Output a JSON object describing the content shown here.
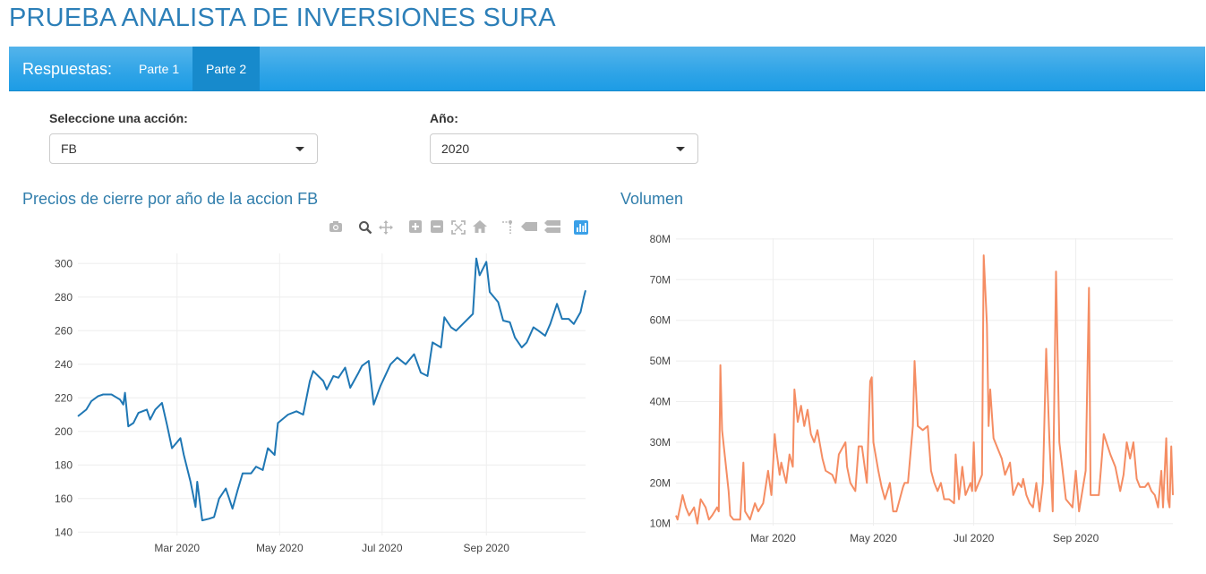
{
  "title": "PRUEBA ANALISTA DE INVERSIONES SURA",
  "nav": {
    "brand": "Respuestas:",
    "tabs": [
      {
        "label": "Parte 1",
        "active": false
      },
      {
        "label": "Parte 2",
        "active": true
      }
    ]
  },
  "controls": {
    "accion": {
      "label": "Seleccione una acción:",
      "value": "FB"
    },
    "anio": {
      "label": "Año:",
      "value": "2020"
    }
  },
  "colors": {
    "accent": "#2fa4e7",
    "price_line": "#1f77b4",
    "volume_line": "#f58d63"
  },
  "modebar_icons": [
    "camera-icon",
    "zoom-icon",
    "pan-icon",
    "zoom-in-icon",
    "zoom-out-icon",
    "autoscale-icon",
    "home-icon",
    "spike-lines-icon",
    "hover-closest-icon",
    "hover-compare-icon",
    "plotly-logo-icon"
  ],
  "chart_data": [
    {
      "type": "line",
      "title": "Precios de cierre por año de la accion FB",
      "xlabel": "",
      "ylabel": "",
      "x_ticks": [
        "Mar 2020",
        "May 2020",
        "Jul 2020",
        "Sep 2020"
      ],
      "x_tick_dates": [
        "2020-03-01",
        "2020-05-01",
        "2020-07-01",
        "2020-09-01"
      ],
      "x_range": [
        "2020-01-02",
        "2020-10-30"
      ],
      "y_ticks": [
        140,
        160,
        180,
        200,
        220,
        240,
        260,
        280,
        300
      ],
      "ylim": [
        138,
        306
      ],
      "grid": true,
      "series": [
        {
          "values": [
            [
              "2020-01-02",
              209
            ],
            [
              "2020-01-07",
              213
            ],
            [
              "2020-01-10",
              218
            ],
            [
              "2020-01-14",
              221
            ],
            [
              "2020-01-17",
              222
            ],
            [
              "2020-01-22",
              222
            ],
            [
              "2020-01-27",
              219
            ],
            [
              "2020-01-29",
              216
            ],
            [
              "2020-01-30",
              223
            ],
            [
              "2020-02-01",
              203
            ],
            [
              "2020-02-04",
              205
            ],
            [
              "2020-02-07",
              211
            ],
            [
              "2020-02-12",
              213
            ],
            [
              "2020-02-14",
              207
            ],
            [
              "2020-02-17",
              213
            ],
            [
              "2020-02-21",
              217
            ],
            [
              "2020-02-24",
              204
            ],
            [
              "2020-02-27",
              190
            ],
            [
              "2020-03-03",
              196
            ],
            [
              "2020-03-05",
              186
            ],
            [
              "2020-03-09",
              170
            ],
            [
              "2020-03-12",
              155
            ],
            [
              "2020-03-13",
              170
            ],
            [
              "2020-03-16",
              147
            ],
            [
              "2020-03-20",
              148
            ],
            [
              "2020-03-23",
              149
            ],
            [
              "2020-03-26",
              160
            ],
            [
              "2020-03-30",
              166
            ],
            [
              "2020-04-03",
              154
            ],
            [
              "2020-04-06",
              165
            ],
            [
              "2020-04-09",
              175
            ],
            [
              "2020-04-14",
              175
            ],
            [
              "2020-04-17",
              179
            ],
            [
              "2020-04-21",
              177
            ],
            [
              "2020-04-24",
              190
            ],
            [
              "2020-04-28",
              186
            ],
            [
              "2020-04-30",
              205
            ],
            [
              "2020-05-06",
              210
            ],
            [
              "2020-05-11",
              212
            ],
            [
              "2020-05-15",
              210
            ],
            [
              "2020-05-19",
              230
            ],
            [
              "2020-05-21",
              236
            ],
            [
              "2020-05-27",
              230
            ],
            [
              "2020-05-29",
              225
            ],
            [
              "2020-06-02",
              233
            ],
            [
              "2020-06-05",
              232
            ],
            [
              "2020-06-09",
              238
            ],
            [
              "2020-06-12",
              226
            ],
            [
              "2020-06-17",
              235
            ],
            [
              "2020-06-19",
              239
            ],
            [
              "2020-06-23",
              242
            ],
            [
              "2020-06-26",
              216
            ],
            [
              "2020-06-30",
              227
            ],
            [
              "2020-07-06",
              240
            ],
            [
              "2020-07-10",
              244
            ],
            [
              "2020-07-15",
              240
            ],
            [
              "2020-07-20",
              246
            ],
            [
              "2020-07-24",
              235
            ],
            [
              "2020-07-28",
              233
            ],
            [
              "2020-07-31",
              253
            ],
            [
              "2020-08-05",
              250
            ],
            [
              "2020-08-07",
              268
            ],
            [
              "2020-08-11",
              262
            ],
            [
              "2020-08-14",
              260
            ],
            [
              "2020-08-19",
              265
            ],
            [
              "2020-08-24",
              270
            ],
            [
              "2020-08-26",
              303
            ],
            [
              "2020-08-28",
              293
            ],
            [
              "2020-09-01",
              301
            ],
            [
              "2020-09-03",
              283
            ],
            [
              "2020-09-08",
              277
            ],
            [
              "2020-09-11",
              266
            ],
            [
              "2020-09-15",
              265
            ],
            [
              "2020-09-18",
              256
            ],
            [
              "2020-09-22",
              250
            ],
            [
              "2020-09-25",
              253
            ],
            [
              "2020-09-29",
              262
            ],
            [
              "2020-10-02",
              260
            ],
            [
              "2020-10-06",
              257
            ],
            [
              "2020-10-09",
              264
            ],
            [
              "2020-10-13",
              276
            ],
            [
              "2020-10-16",
              267
            ],
            [
              "2020-10-20",
              267
            ],
            [
              "2020-10-23",
              264
            ],
            [
              "2020-10-27",
              271
            ],
            [
              "2020-10-29",
              280
            ],
            [
              "2020-10-30",
              284
            ]
          ]
        }
      ]
    },
    {
      "type": "line",
      "title": "Volumen",
      "xlabel": "",
      "ylabel": "",
      "x_ticks": [
        "Mar 2020",
        "May 2020",
        "Jul 2020",
        "Sep 2020"
      ],
      "x_tick_dates": [
        "2020-03-01",
        "2020-05-01",
        "2020-07-01",
        "2020-09-01"
      ],
      "x_range": [
        "2020-01-02",
        "2020-10-30"
      ],
      "y_ticks": [
        10000000,
        20000000,
        30000000,
        40000000,
        50000000,
        60000000,
        70000000,
        80000000
      ],
      "y_tick_labels": [
        "10M",
        "20M",
        "30M",
        "40M",
        "50M",
        "60M",
        "70M",
        "80M"
      ],
      "ylim": [
        9500000,
        80200000
      ],
      "grid": true,
      "series": [
        {
          "values": [
            [
              "2020-01-02",
              12
            ],
            [
              "2020-01-03",
              11
            ],
            [
              "2020-01-06",
              17
            ],
            [
              "2020-01-08",
              14
            ],
            [
              "2020-01-10",
              12
            ],
            [
              "2020-01-13",
              14
            ],
            [
              "2020-01-15",
              10
            ],
            [
              "2020-01-17",
              16
            ],
            [
              "2020-01-20",
              14
            ],
            [
              "2020-01-22",
              11
            ],
            [
              "2020-01-24",
              12
            ],
            [
              "2020-01-27",
              14
            ],
            [
              "2020-01-28",
              13
            ],
            [
              "2020-01-29",
              49
            ],
            [
              "2020-01-30",
              33
            ],
            [
              "2020-02-03",
              18
            ],
            [
              "2020-02-04",
              12
            ],
            [
              "2020-02-06",
              11
            ],
            [
              "2020-02-10",
              11
            ],
            [
              "2020-02-12",
              25
            ],
            [
              "2020-02-13",
              13
            ],
            [
              "2020-02-16",
              11
            ],
            [
              "2020-02-19",
              15
            ],
            [
              "2020-02-21",
              13
            ],
            [
              "2020-02-24",
              15
            ],
            [
              "2020-02-27",
              23
            ],
            [
              "2020-02-29",
              17
            ],
            [
              "2020-03-02",
              32
            ],
            [
              "2020-03-03",
              28
            ],
            [
              "2020-03-05",
              22
            ],
            [
              "2020-03-06",
              25
            ],
            [
              "2020-03-09",
              20
            ],
            [
              "2020-03-11",
              27
            ],
            [
              "2020-03-13",
              24
            ],
            [
              "2020-03-14",
              43
            ],
            [
              "2020-03-16",
              35
            ],
            [
              "2020-03-18",
              39
            ],
            [
              "2020-03-20",
              34
            ],
            [
              "2020-03-22",
              38
            ],
            [
              "2020-03-24",
              32
            ],
            [
              "2020-03-26",
              30
            ],
            [
              "2020-03-28",
              33
            ],
            [
              "2020-03-31",
              26
            ],
            [
              "2020-04-02",
              23
            ],
            [
              "2020-04-06",
              22
            ],
            [
              "2020-04-08",
              20
            ],
            [
              "2020-04-10",
              27
            ],
            [
              "2020-04-14",
              30
            ],
            [
              "2020-04-15",
              24
            ],
            [
              "2020-04-17",
              20
            ],
            [
              "2020-04-20",
              18
            ],
            [
              "2020-04-22",
              29
            ],
            [
              "2020-04-24",
              29
            ],
            [
              "2020-04-27",
              20
            ],
            [
              "2020-04-29",
              45
            ],
            [
              "2020-04-30",
              46
            ],
            [
              "2020-05-01",
              30
            ],
            [
              "2020-05-04",
              23
            ],
            [
              "2020-05-06",
              19
            ],
            [
              "2020-05-08",
              16
            ],
            [
              "2020-05-11",
              20
            ],
            [
              "2020-05-13",
              13
            ],
            [
              "2020-05-15",
              13
            ],
            [
              "2020-05-19",
              19
            ],
            [
              "2020-05-20",
              20
            ],
            [
              "2020-05-22",
              20
            ],
            [
              "2020-05-25",
              34
            ],
            [
              "2020-05-26",
              50
            ],
            [
              "2020-05-28",
              34
            ],
            [
              "2020-05-31",
              33
            ],
            [
              "2020-06-03",
              34
            ],
            [
              "2020-06-05",
              23
            ],
            [
              "2020-06-07",
              20
            ],
            [
              "2020-06-09",
              18
            ],
            [
              "2020-06-11",
              20
            ],
            [
              "2020-06-13",
              16
            ],
            [
              "2020-06-16",
              16
            ],
            [
              "2020-06-19",
              15
            ],
            [
              "2020-06-20",
              27
            ],
            [
              "2020-06-22",
              16
            ],
            [
              "2020-06-24",
              24
            ],
            [
              "2020-06-26",
              17
            ],
            [
              "2020-06-29",
              20
            ],
            [
              "2020-06-30",
              18
            ],
            [
              "2020-07-01",
              30
            ],
            [
              "2020-07-02",
              18
            ],
            [
              "2020-07-06",
              22
            ],
            [
              "2020-07-07",
              76
            ],
            [
              "2020-07-09",
              59
            ],
            [
              "2020-07-10",
              34
            ],
            [
              "2020-07-11",
              43
            ],
            [
              "2020-07-13",
              31
            ],
            [
              "2020-07-16",
              28
            ],
            [
              "2020-07-18",
              26
            ],
            [
              "2020-07-20",
              22
            ],
            [
              "2020-07-23",
              25
            ],
            [
              "2020-07-25",
              17
            ],
            [
              "2020-07-28",
              20
            ],
            [
              "2020-07-30",
              19
            ],
            [
              "2020-07-31",
              21
            ],
            [
              "2020-08-02",
              17
            ],
            [
              "2020-08-04",
              15
            ],
            [
              "2020-08-06",
              14
            ],
            [
              "2020-08-08",
              20
            ],
            [
              "2020-08-10",
              13
            ],
            [
              "2020-08-12",
              20
            ],
            [
              "2020-08-14",
              53
            ],
            [
              "2020-08-16",
              30
            ],
            [
              "2020-08-18",
              13
            ],
            [
              "2020-08-20",
              72
            ],
            [
              "2020-08-22",
              30
            ],
            [
              "2020-08-24",
              23
            ],
            [
              "2020-08-26",
              16
            ],
            [
              "2020-08-28",
              15
            ],
            [
              "2020-08-30",
              14
            ],
            [
              "2020-09-01",
              23
            ],
            [
              "2020-09-03",
              13
            ],
            [
              "2020-09-05",
              18
            ],
            [
              "2020-09-07",
              23
            ],
            [
              "2020-09-09",
              68
            ],
            [
              "2020-09-10",
              17
            ],
            [
              "2020-09-12",
              17
            ],
            [
              "2020-09-15",
              17
            ],
            [
              "2020-09-18",
              32
            ],
            [
              "2020-09-22",
              27
            ],
            [
              "2020-09-25",
              24
            ],
            [
              "2020-09-28",
              18
            ],
            [
              "2020-09-30",
              22
            ],
            [
              "2020-10-02",
              30
            ],
            [
              "2020-10-04",
              26
            ],
            [
              "2020-10-06",
              30
            ],
            [
              "2020-10-08",
              21
            ],
            [
              "2020-10-10",
              19
            ],
            [
              "2020-10-13",
              19
            ],
            [
              "2020-10-15",
              20
            ],
            [
              "2020-10-17",
              18
            ],
            [
              "2020-10-19",
              17
            ],
            [
              "2020-10-21",
              14
            ],
            [
              "2020-10-23",
              23
            ],
            [
              "2020-10-24",
              14
            ],
            [
              "2020-10-26",
              31
            ],
            [
              "2020-10-27",
              16
            ],
            [
              "2020-10-28",
              14
            ],
            [
              "2020-10-29",
              29
            ],
            [
              "2020-10-30",
              17
            ]
          ],
          "value_unit": "M"
        }
      ]
    }
  ]
}
